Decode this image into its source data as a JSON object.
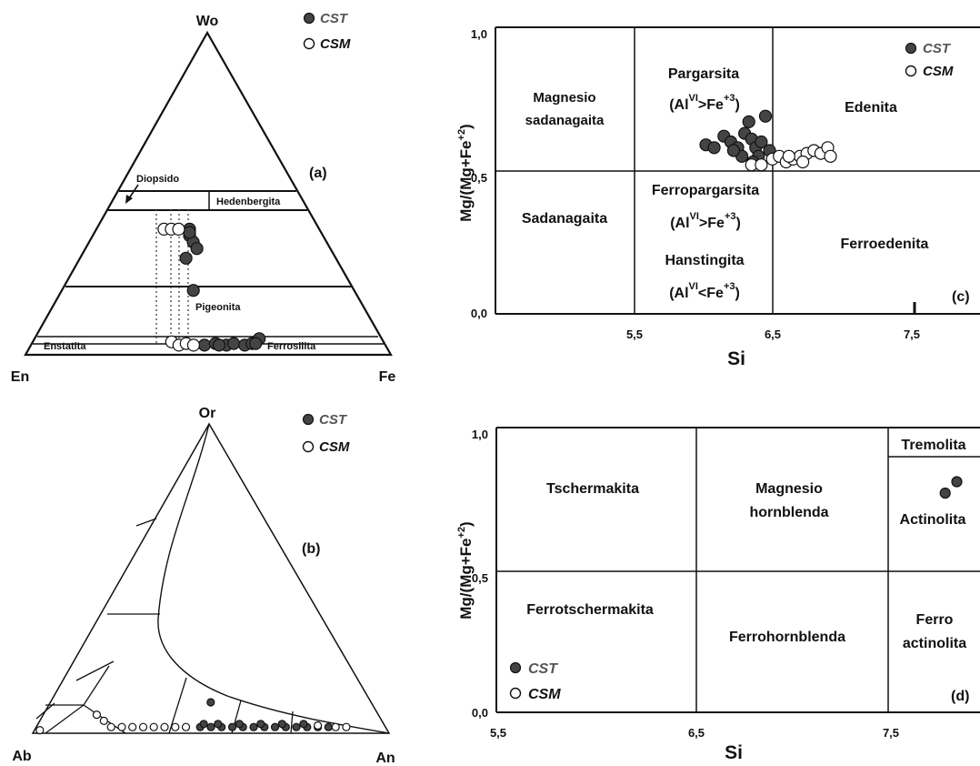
{
  "legend": {
    "cst": "CST",
    "csm": "CSM"
  },
  "chart_data": [
    {
      "id": "a",
      "type": "scatter",
      "panel_label": "(a)",
      "apices": {
        "top": "Wo",
        "left": "En",
        "right": "Fe"
      },
      "fields": {
        "diopsido": "Diopsido",
        "hedenbergita": "Hedenbergita",
        "pigeonita": "Pigeonita",
        "enstatita": "Enstatita",
        "ferrosilita": "Ferrosilita"
      },
      "series": [
        {
          "name": "CST",
          "color": "#444444",
          "points": [
            [
              0.45,
              0.39
            ],
            [
              0.45,
              0.37
            ],
            [
              0.46,
              0.35
            ],
            [
              0.47,
              0.33
            ],
            [
              0.44,
              0.3
            ],
            [
              0.46,
              0.2
            ],
            [
              0.45,
              0.38
            ],
            [
              0.49,
              0.03
            ],
            [
              0.52,
              0.035
            ],
            [
              0.55,
              0.03
            ],
            [
              0.57,
              0.035
            ],
            [
              0.6,
              0.03
            ],
            [
              0.62,
              0.035
            ],
            [
              0.64,
              0.05
            ],
            [
              0.63,
              0.035
            ],
            [
              0.53,
              0.03
            ]
          ]
        },
        {
          "name": "CSM",
          "color": "#ffffff",
          "points": [
            [
              0.38,
              0.39
            ],
            [
              0.4,
              0.39
            ],
            [
              0.42,
              0.39
            ],
            [
              0.4,
              0.04
            ],
            [
              0.42,
              0.03
            ],
            [
              0.44,
              0.035
            ],
            [
              0.46,
              0.03
            ]
          ]
        }
      ]
    },
    {
      "id": "b",
      "type": "scatter",
      "panel_label": "(b)",
      "apices": {
        "top": "Or",
        "left": "Ab",
        "right": "An"
      },
      "series": [
        {
          "name": "CST",
          "color": "#444444",
          "points": [
            [
              0.5,
              0.1
            ],
            [
              0.47,
              0.02
            ],
            [
              0.5,
              0.02
            ],
            [
              0.53,
              0.02
            ],
            [
              0.56,
              0.02
            ],
            [
              0.59,
              0.02
            ],
            [
              0.62,
              0.02
            ],
            [
              0.65,
              0.02
            ],
            [
              0.68,
              0.02
            ],
            [
              0.71,
              0.02
            ],
            [
              0.74,
              0.02
            ],
            [
              0.77,
              0.02
            ],
            [
              0.8,
              0.02
            ],
            [
              0.83,
              0.02
            ],
            [
              0.48,
              0.03
            ],
            [
              0.52,
              0.03
            ],
            [
              0.58,
              0.03
            ],
            [
              0.64,
              0.03
            ],
            [
              0.7,
              0.03
            ],
            [
              0.76,
              0.03
            ]
          ]
        },
        {
          "name": "CSM",
          "color": "#ffffff",
          "points": [
            [
              0.02,
              0.01
            ],
            [
              0.22,
              0.02
            ],
            [
              0.25,
              0.02
            ],
            [
              0.28,
              0.02
            ],
            [
              0.31,
              0.02
            ],
            [
              0.34,
              0.02
            ],
            [
              0.37,
              0.02
            ],
            [
              0.4,
              0.02
            ],
            [
              0.43,
              0.02
            ],
            [
              0.18,
              0.06
            ],
            [
              0.2,
              0.04
            ],
            [
              0.8,
              0.025
            ],
            [
              0.85,
              0.02
            ],
            [
              0.88,
              0.02
            ]
          ]
        }
      ]
    },
    {
      "id": "c",
      "type": "scatter",
      "panel_label": "(c)",
      "xlabel": "Si",
      "ylabel": "Mg/(Mg+Fe+2)",
      "x_ticks": [
        "5,5",
        "6,5",
        "7,5"
      ],
      "y_ticks": [
        "1,0",
        "0,5",
        "0,0"
      ],
      "xlim": [
        4.5,
        8.0
      ],
      "ylim": [
        0.0,
        1.0
      ],
      "fields": {
        "magnesio_sadanagaita": "Magnesio sadanagaita",
        "pargarsita": "Pargarsita",
        "edenita": "Edenita",
        "sadanagaita": "Sadanagaita",
        "ferropargarsita": "Ferropargarsita",
        "hanstingita": "Hanstingita",
        "ferroedenita": "Ferroedenita"
      },
      "series": [
        {
          "name": "CST",
          "color": "#444444",
          "points": [
            [
              6.02,
              0.59
            ],
            [
              6.08,
              0.58
            ],
            [
              6.15,
              0.62
            ],
            [
              6.2,
              0.6
            ],
            [
              6.25,
              0.58
            ],
            [
              6.3,
              0.63
            ],
            [
              6.33,
              0.67
            ],
            [
              6.35,
              0.61
            ],
            [
              6.38,
              0.58
            ],
            [
              6.4,
              0.55
            ],
            [
              6.42,
              0.6
            ],
            [
              6.45,
              0.69
            ],
            [
              6.28,
              0.55
            ],
            [
              6.22,
              0.57
            ],
            [
              6.48,
              0.57
            ],
            [
              6.36,
              0.53
            ]
          ]
        },
        {
          "name": "CSM",
          "color": "#ffffff",
          "points": [
            [
              6.35,
              0.52
            ],
            [
              6.42,
              0.52
            ],
            [
              6.5,
              0.54
            ],
            [
              6.55,
              0.55
            ],
            [
              6.6,
              0.53
            ],
            [
              6.65,
              0.54
            ],
            [
              6.7,
              0.55
            ],
            [
              6.75,
              0.56
            ],
            [
              6.8,
              0.57
            ],
            [
              6.85,
              0.56
            ],
            [
              6.9,
              0.58
            ],
            [
              6.92,
              0.55
            ],
            [
              6.72,
              0.53
            ],
            [
              6.62,
              0.55
            ]
          ]
        }
      ]
    },
    {
      "id": "d",
      "type": "scatter",
      "panel_label": "(d)",
      "xlabel": "Si",
      "ylabel": "Mg/(Mg+Fe+2)",
      "x_ticks": [
        "5,5",
        "6,5",
        "7,5"
      ],
      "y_ticks": [
        "1,0",
        "0,5",
        "0,0"
      ],
      "xlim": [
        5.5,
        8.0
      ],
      "ylim": [
        0.0,
        1.0
      ],
      "fields": {
        "tschermakita": "Tschermakita",
        "magnesio_hornblenda": "Magnesio hornblenda",
        "tremolita": "Tremolita",
        "actinolita": "Actinolita",
        "ferrotschermakita": "Ferrotschermakita",
        "ferrohornblenda": "Ferrohornblenda",
        "ferro_actinolita": "Ferro actinolita"
      },
      "series": [
        {
          "name": "CST",
          "color": "#444444",
          "points": [
            [
              7.82,
              0.77
            ],
            [
              7.88,
              0.81
            ]
          ]
        },
        {
          "name": "CSM",
          "color": "#ffffff",
          "points": []
        }
      ]
    }
  ]
}
